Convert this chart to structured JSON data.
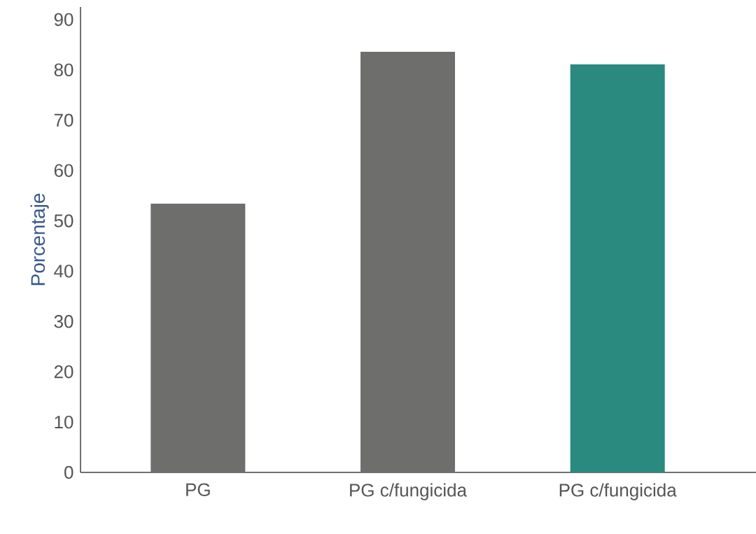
{
  "chart_data": {
    "type": "bar",
    "ylabel": "Porcentaje",
    "categories": [
      "PG",
      "PG c/fungicida",
      "PG c/fungicida"
    ],
    "values": [
      53.4,
      83.6,
      81.1
    ],
    "colors": [
      "#6e6e6d",
      "#6e6e6d",
      "#2a8a80"
    ],
    "ylim": [
      0,
      92.5
    ],
    "yticks": [
      0,
      10,
      20,
      30,
      40,
      50,
      60,
      70,
      80,
      90
    ],
    "grid": false
  }
}
